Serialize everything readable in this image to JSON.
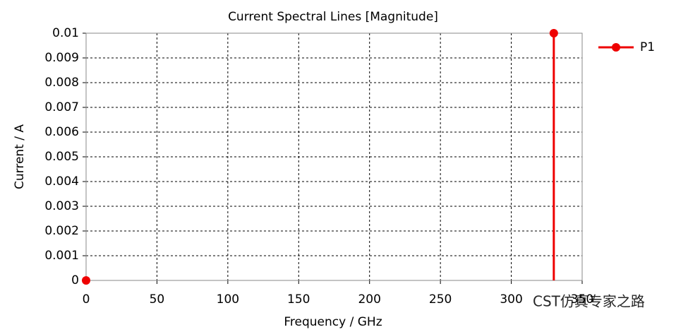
{
  "chart_data": {
    "type": "stem",
    "title": "Current Spectral Lines [Magnitude]",
    "x_label": "Frequency / GHz",
    "y_label": "Current / A",
    "x": [
      0,
      330
    ],
    "series": [
      {
        "name": "P1",
        "color": "#ee0000",
        "values": [
          0,
          0.01
        ]
      }
    ],
    "xlim": [
      0,
      350
    ],
    "xticks": [
      0,
      50,
      100,
      150,
      200,
      250,
      300,
      350
    ],
    "ylim": [
      0,
      0.01
    ],
    "yticks": [
      0,
      0.001,
      0.002,
      0.003,
      0.004,
      0.005,
      0.006,
      0.007,
      0.008,
      0.009,
      0.01
    ],
    "grid": true,
    "legend": "right",
    "watermark": "CST仿真专家之路"
  }
}
